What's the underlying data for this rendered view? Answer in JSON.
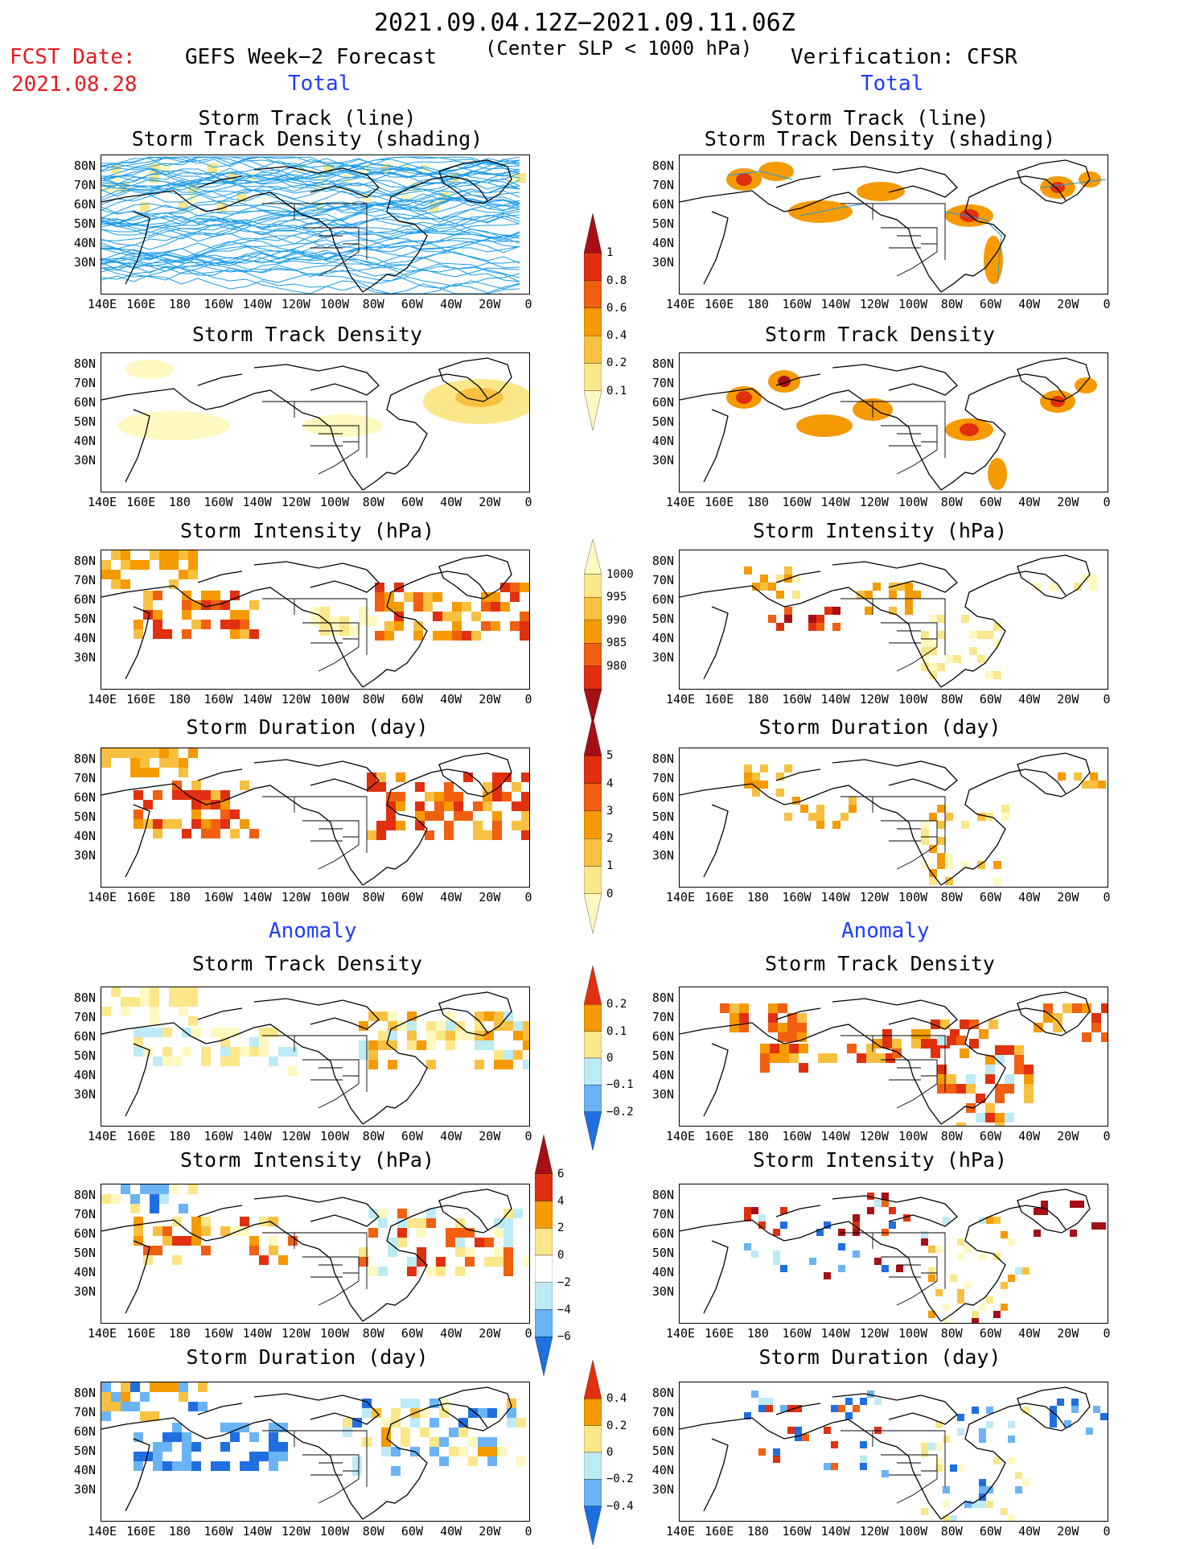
{
  "header": {
    "period": "2021.09.04.12Z−2021.09.11.06Z",
    "subtitle": "(Center SLP < 1000 hPa)",
    "fcst_label": "FCST Date:",
    "fcst_date": "2021.08.28",
    "left_title": "GEFS Week−2 Forecast",
    "right_title": "Verification: CFSR",
    "total_label": "Total",
    "anomaly_label": "Anomaly"
  },
  "panel_titles": {
    "track_line": "Storm Track (line)",
    "track_shading": "Storm Track Density (shading)",
    "density": "Storm Track Density",
    "intensity": "Storm Intensity (hPa)",
    "duration": "Storm Duration (day)"
  },
  "axes": {
    "lat_labels": [
      "80N",
      "70N",
      "60N",
      "50N",
      "40N",
      "30N"
    ],
    "lon_labels": [
      "140E",
      "160E",
      "180",
      "160W",
      "140W",
      "120W",
      "100W",
      "80W",
      "60W",
      "40W",
      "20W",
      "0"
    ]
  },
  "colorbars": {
    "density_total": {
      "labels": [
        "1",
        "0.8",
        "0.6",
        "0.4",
        "0.2",
        "0.1"
      ],
      "colors": [
        "#a50f15",
        "#e03010",
        "#f06010",
        "#f59a00",
        "#f8c040",
        "#fbe68a",
        "#fff8c0"
      ]
    },
    "intensity_total": {
      "labels": [
        "1000",
        "995",
        "990",
        "985",
        "980"
      ],
      "colors": [
        "#fff8c0",
        "#fbe68a",
        "#f8c040",
        "#f59a00",
        "#f06010",
        "#e03010",
        "#a50f15"
      ]
    },
    "duration_total": {
      "labels": [
        "5",
        "4",
        "3",
        "2",
        "1",
        "0"
      ],
      "colors": [
        "#a50f15",
        "#e03010",
        "#f06010",
        "#f59a00",
        "#f8c040",
        "#fbe68a",
        "#fff8c0"
      ]
    },
    "density_anom": {
      "labels": [
        "0.2",
        "0.1",
        "0",
        "−0.1",
        "−0.2"
      ],
      "colors": [
        "#e03010",
        "#f59a00",
        "#fbe68a",
        "#bdebf5",
        "#6ab4f5",
        "#1f6fe0"
      ]
    },
    "intensity_anom": {
      "labels": [
        "6",
        "4",
        "2",
        "0",
        "−2",
        "−4",
        "−6"
      ],
      "colors": [
        "#a50f15",
        "#e03010",
        "#f59a00",
        "#fbe68a",
        "#ffffff",
        "#bdebf5",
        "#6ab4f5",
        "#1f6fe0"
      ]
    },
    "duration_anom": {
      "labels": [
        "0.4",
        "0.2",
        "0",
        "−0.2",
        "−0.4"
      ],
      "colors": [
        "#e03010",
        "#f59a00",
        "#fbe68a",
        "#bdebf5",
        "#6ab4f5",
        "#1f6fe0"
      ]
    }
  }
}
